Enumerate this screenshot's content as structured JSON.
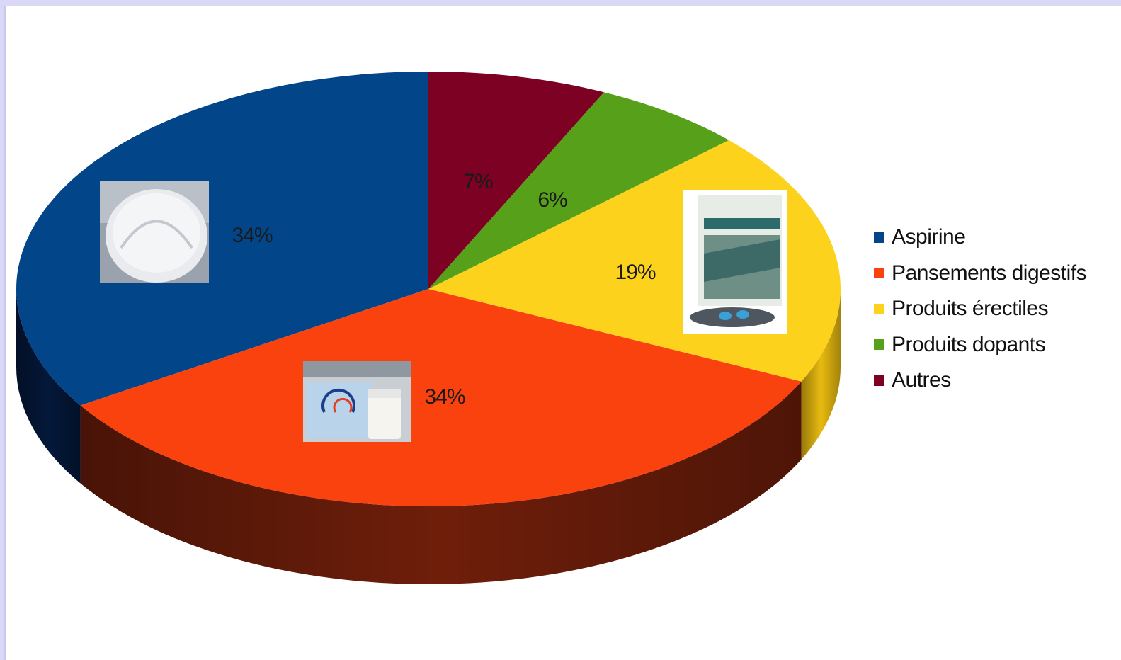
{
  "chart_data": {
    "type": "pie",
    "title": "",
    "style": "3d",
    "legend_position": "right",
    "categories": [
      "Aspirine",
      "Pansements digestifs",
      "Produits érectiles",
      "Produits dopants",
      "Autres"
    ],
    "values": [
      34,
      34,
      19,
      6,
      7
    ],
    "value_labels": [
      "34%",
      "34%",
      "19%",
      "6%",
      "7%"
    ],
    "colors": [
      "#024589",
      "#f9420e",
      "#fdd21c",
      "#56a01a",
      "#7d0122"
    ],
    "side_colors": [
      "#04183a",
      "#6f1e0a",
      "#e8ba10",
      "#2e5a0a",
      "#3f0010"
    ],
    "slice_pictures": [
      "aspirin-tablet",
      "digestive-remedy-with-milk",
      "kamagra-100-box",
      null,
      null
    ]
  }
}
